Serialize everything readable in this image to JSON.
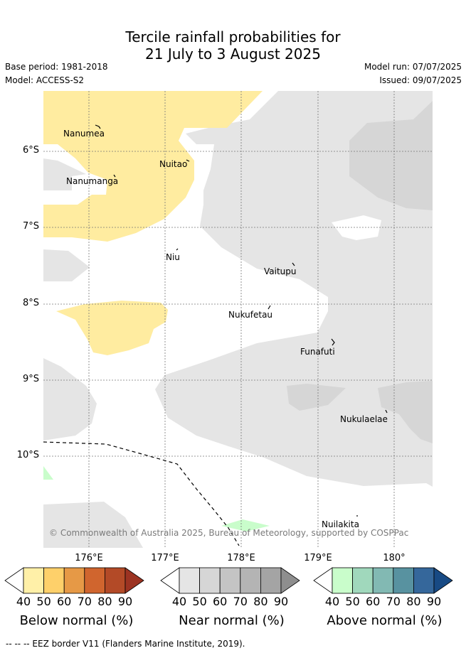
{
  "title_line1": "Tercile rainfall probabilities for",
  "title_line2": "21 July to 3 August 2025",
  "base_period": "Base period: 1981-2018",
  "model": "Model: ACCESS-S2",
  "model_run": "Model run: 07/07/2025",
  "issued": "Issued: 09/07/2025",
  "copyright": "© Commonwealth of Australia 2025, Bureau of Meteorology, supported by COSPPac",
  "footer": "--  --  -- EEZ border V11 (Flanders Marine Institute, 2019).",
  "islands": {
    "nanumea": "Nanumea",
    "nuitao": "Nuitao",
    "nanumanga": "Nanumanga",
    "niu": "Niu",
    "vaitupu": "Vaitupu",
    "nukufetau": "Nukufetau",
    "funafuti": "Funafuti",
    "nukulaelae": "Nukulaelae",
    "nuilakita": "Nuilakita"
  },
  "lat_labels": [
    "6°S",
    "7°S",
    "8°S",
    "9°S",
    "10°S"
  ],
  "lon_labels": [
    "176°E",
    "177°E",
    "178°E",
    "179°E",
    "180°"
  ],
  "colorbars": {
    "below": {
      "label": "Below normal (%)",
      "ticks": [
        "40",
        "50",
        "60",
        "70",
        "80",
        "90"
      ],
      "colors": [
        "#ffffff",
        "#fff0a8",
        "#fed06a",
        "#e69946",
        "#d0652e",
        "#b34a27",
        "#9c3322"
      ]
    },
    "near": {
      "label": "Near normal (%)",
      "ticks": [
        "40",
        "50",
        "60",
        "70",
        "80",
        "90"
      ],
      "colors": [
        "#ffffff",
        "#e5e5e5",
        "#d6d6d6",
        "#c4c4c4",
        "#b4b4b4",
        "#a4a4a4",
        "#8e8e8e"
      ]
    },
    "above": {
      "label": "Above normal (%)",
      "ticks": [
        "40",
        "50",
        "60",
        "70",
        "80",
        "90"
      ],
      "colors": [
        "#ffffff",
        "#c9fdcb",
        "#a0d8bc",
        "#82b9b3",
        "#5892a0",
        "#35679b",
        "#184a84"
      ]
    }
  },
  "map_colors": {
    "ocean": "#ffffff",
    "below_40": "#ffeca0",
    "near_40": "#e5e5e5",
    "near_50": "#d6d6d6",
    "above_40": "#c9fdcb",
    "grid": "#777777",
    "eez": "#000000"
  }
}
